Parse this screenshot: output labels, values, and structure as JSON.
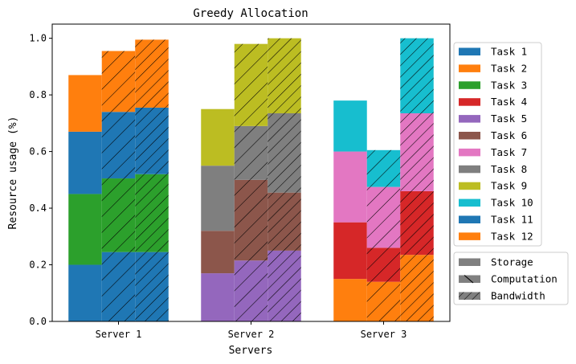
{
  "chart_data": {
    "type": "bar",
    "title": "Greedy Allocation",
    "xlabel": "Servers",
    "ylabel": "Resource usage (%)",
    "ylim": [
      0,
      1.05
    ],
    "yticks": [
      "0.0",
      "0.2",
      "0.4",
      "0.6",
      "0.8",
      "1.0"
    ],
    "categories": [
      "Server 1",
      "Server 2",
      "Server 3"
    ],
    "resources": [
      {
        "name": "Storage",
        "pattern": "none"
      },
      {
        "name": "Computation",
        "pattern": "backslash"
      },
      {
        "name": "Bandwidth",
        "pattern": "backslash-dense"
      }
    ],
    "tasks": [
      {
        "name": "Task 1",
        "color": "#1f77b4"
      },
      {
        "name": "Task 2",
        "color": "#ff7f0e"
      },
      {
        "name": "Task 3",
        "color": "#2ca02c"
      },
      {
        "name": "Task 4",
        "color": "#d62728"
      },
      {
        "name": "Task 5",
        "color": "#9467bd"
      },
      {
        "name": "Task 6",
        "color": "#8c564b"
      },
      {
        "name": "Task 7",
        "color": "#e377c2"
      },
      {
        "name": "Task 8",
        "color": "#7f7f7f"
      },
      {
        "name": "Task 9",
        "color": "#bcbd22"
      },
      {
        "name": "Task 10",
        "color": "#17becf"
      },
      {
        "name": "Task 11",
        "color": "#1f77b4"
      },
      {
        "name": "Task 12",
        "color": "#ff7f0e"
      }
    ],
    "allocation": [
      {
        "server": "Server 1",
        "tasks": [
          "Task 1",
          "Task 3",
          "Task 11",
          "Task 12"
        ],
        "usage": {
          "Storage": [
            0.2,
            0.25,
            0.22,
            0.2
          ],
          "Computation": [
            0.245,
            0.26,
            0.235,
            0.215
          ],
          "Bandwidth": [
            0.245,
            0.275,
            0.235,
            0.24
          ]
        }
      },
      {
        "server": "Server 2",
        "tasks": [
          "Task 5",
          "Task 6",
          "Task 8",
          "Task 9"
        ],
        "usage": {
          "Storage": [
            0.17,
            0.15,
            0.23,
            0.2
          ],
          "Computation": [
            0.215,
            0.285,
            0.19,
            0.29
          ],
          "Bandwidth": [
            0.25,
            0.205,
            0.28,
            0.265
          ]
        }
      },
      {
        "server": "Server 3",
        "tasks": [
          "Task 12",
          "Task 4",
          "Task 7",
          "Task 10"
        ],
        "usage": {
          "Storage": [
            0.15,
            0.2,
            0.25,
            0.18
          ],
          "Computation": [
            0.14,
            0.12,
            0.215,
            0.13
          ],
          "Bandwidth": [
            0.235,
            0.225,
            0.275,
            0.265
          ]
        }
      }
    ],
    "legend_tasks_placement": "right-top",
    "legend_resources_placement": "right-bottom",
    "grid": false
  }
}
